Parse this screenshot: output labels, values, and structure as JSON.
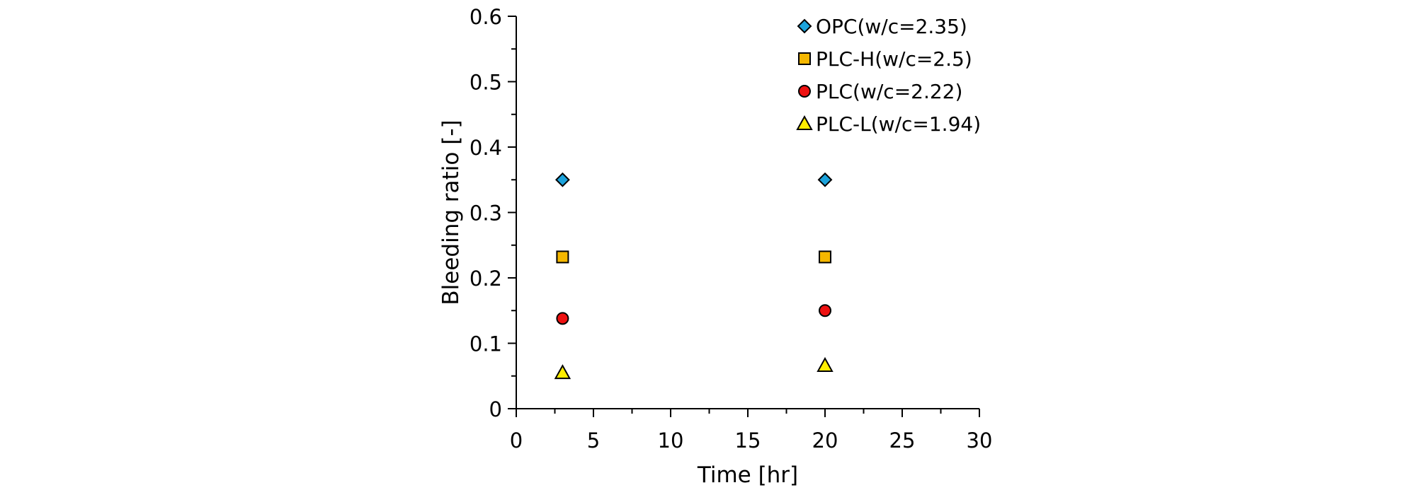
{
  "chart_data": {
    "type": "scatter",
    "xlabel": "Time [hr]",
    "ylabel": "Bleeding ratio [-]",
    "xlim": [
      0,
      30
    ],
    "ylim": [
      0,
      0.6
    ],
    "xticks": [
      0,
      5,
      10,
      15,
      20,
      25,
      30
    ],
    "yticks": [
      0,
      0.1,
      0.2,
      0.3,
      0.4,
      0.5,
      0.6
    ],
    "grid": false,
    "legend_position": "top-right",
    "series": [
      {
        "name": "OPC(w/c=2.35)",
        "marker": "diamond",
        "color": "#1ca3dc",
        "x": [
          3,
          20
        ],
        "y": [
          0.35,
          0.35
        ]
      },
      {
        "name": "PLC-H(w/c=2.5)",
        "marker": "square",
        "color": "#f5b700",
        "x": [
          3,
          20
        ],
        "y": [
          0.232,
          0.232
        ]
      },
      {
        "name": "PLC(w/c=2.22)",
        "marker": "circle",
        "color": "#ee1111",
        "x": [
          3,
          20
        ],
        "y": [
          0.138,
          0.15
        ]
      },
      {
        "name": "PLC-L(w/c=1.94)",
        "marker": "triangle",
        "color": "#ffee00",
        "x": [
          3,
          20
        ],
        "y": [
          0.055,
          0.066
        ]
      }
    ]
  }
}
